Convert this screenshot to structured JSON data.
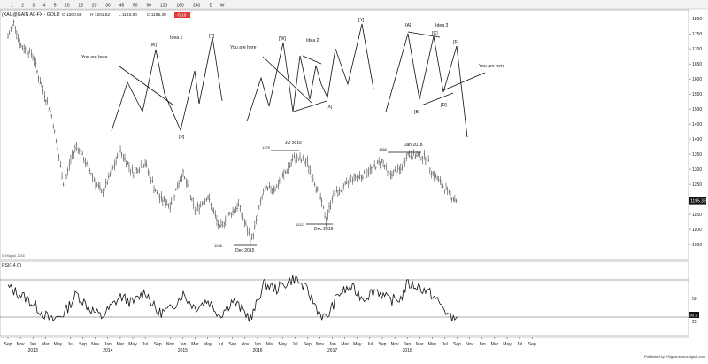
{
  "toolbar": {
    "intervals": [
      "1",
      "2",
      "3",
      "4",
      "5",
      "10",
      "15",
      "20",
      "30",
      "45",
      "60",
      "90",
      "120",
      "180",
      "240",
      "D",
      "W"
    ]
  },
  "quote_header": {
    "symbol": "(XAU@GAIN A0-FX - GOLD",
    "open": "O 1200.58",
    "high": "H 1201.62",
    "low": "L 1193.80",
    "close": "C 1195.39",
    "change": "-5.19"
  },
  "copyright_label": "© eSignal, 2018",
  "rsi_panel": {
    "title": "RSI(14,C)",
    "last_value": "30.5",
    "ylim": [
      10,
      90
    ],
    "ticks": [
      50,
      25
    ],
    "band_lines": [
      70,
      30
    ]
  },
  "price_axis": {
    "ticks": [
      1800,
      1750,
      1700,
      1650,
      1600,
      1550,
      1500,
      1450,
      1400,
      1350,
      1300,
      1250,
      1200,
      1150,
      1100,
      1050
    ],
    "last_price_label": "1195.39",
    "last_price": 1195.39
  },
  "time_axis": {
    "labels": [
      "Sep",
      "Nov",
      "Jan",
      "Mar",
      "May",
      "Jul",
      "Sep",
      "Nov",
      "Jan",
      "Mar",
      "May",
      "Jul",
      "Sep",
      "Nov",
      "Jan",
      "Mar",
      "May",
      "Jul",
      "Sep",
      "Nov",
      "Jan",
      "Mar",
      "May",
      "Jul",
      "Sep",
      "Nov",
      "Jan",
      "Mar",
      "May",
      "Jul",
      "Sep",
      "Nov",
      "Jan",
      "Mar",
      "May",
      "Jul",
      "Sep",
      "Nov",
      "Jan",
      "Mar",
      "May",
      "Jul",
      "Sep"
    ],
    "year_labels": [
      "2013",
      "2014",
      "2015",
      "2016",
      "2017",
      "2018"
    ]
  },
  "annotations": {
    "ideas": [
      "Idea 1",
      "Idea 2",
      "Idea 3"
    ],
    "you_are_here": "You are here",
    "wave_labels": [
      "[W]",
      "[X]",
      "[Y]",
      "[W]",
      "[X]",
      "[Y]",
      "[A]",
      "[B]",
      "[C]",
      "[D]",
      "[E]"
    ],
    "price_points": [
      "1046",
      "1375",
      "1122",
      "1366"
    ],
    "period_labels": [
      "Dec 2015",
      "Jul 2016",
      "Dec 2016",
      "Jan 2018"
    ]
  },
  "footer": {
    "published_by": "Published by eSignal",
    "site": "www.esignal.com"
  },
  "chart_data": [
    {
      "type": "bar",
      "title": "",
      "xlabel": "",
      "ylabel": "",
      "ylim": [
        1000,
        1830
      ],
      "x_range": [
        "2012-09",
        "2018-09"
      ],
      "weekly_close_series": {
        "x": [
          "2012-09",
          "2012-10",
          "2012-11",
          "2013-01",
          "2013-02",
          "2013-04",
          "2013-06",
          "2013-07",
          "2013-08",
          "2013-10",
          "2013-12",
          "2014-01",
          "2014-03",
          "2014-05",
          "2014-07",
          "2014-09",
          "2014-11",
          "2015-01",
          "2015-03",
          "2015-05",
          "2015-07",
          "2015-08",
          "2015-10",
          "2015-12",
          "2016-02",
          "2016-04",
          "2016-07",
          "2016-09",
          "2016-11",
          "2016-12",
          "2017-01",
          "2017-03",
          "2017-04",
          "2017-06",
          "2017-09",
          "2017-10",
          "2017-12",
          "2018-01",
          "2018-04",
          "2018-05",
          "2018-08",
          "2018-09"
        ],
        "values": [
          1740,
          1790,
          1710,
          1680,
          1600,
          1480,
          1240,
          1330,
          1380,
          1300,
          1220,
          1260,
          1360,
          1290,
          1320,
          1210,
          1180,
          1290,
          1160,
          1210,
          1100,
          1140,
          1180,
          1060,
          1230,
          1240,
          1340,
          1320,
          1210,
          1130,
          1210,
          1240,
          1270,
          1280,
          1330,
          1280,
          1300,
          1350,
          1340,
          1290,
          1210,
          1195.39
        ]
      }
    },
    {
      "type": "line",
      "title": "RSI(14,C)",
      "ylim": [
        10,
        90
      ],
      "x": [
        "2012-09",
        "2012-10",
        "2012-12",
        "2013-02",
        "2013-04",
        "2013-06",
        "2013-08",
        "2013-10",
        "2013-12",
        "2014-03",
        "2014-05",
        "2014-07",
        "2014-09",
        "2014-11",
        "2015-01",
        "2015-03",
        "2015-05",
        "2015-07",
        "2015-09",
        "2015-12",
        "2016-02",
        "2016-04",
        "2016-07",
        "2016-09",
        "2016-11",
        "2016-12",
        "2017-02",
        "2017-04",
        "2017-06",
        "2017-08",
        "2017-10",
        "2017-12",
        "2018-01",
        "2018-03",
        "2018-05",
        "2018-07",
        "2018-08",
        "2018-09"
      ],
      "values": [
        62,
        58,
        50,
        38,
        26,
        34,
        55,
        40,
        30,
        52,
        45,
        58,
        34,
        38,
        55,
        40,
        48,
        32,
        48,
        28,
        66,
        60,
        72,
        58,
        34,
        28,
        55,
        62,
        50,
        60,
        48,
        50,
        66,
        62,
        54,
        38,
        28,
        30.5
      ]
    }
  ]
}
